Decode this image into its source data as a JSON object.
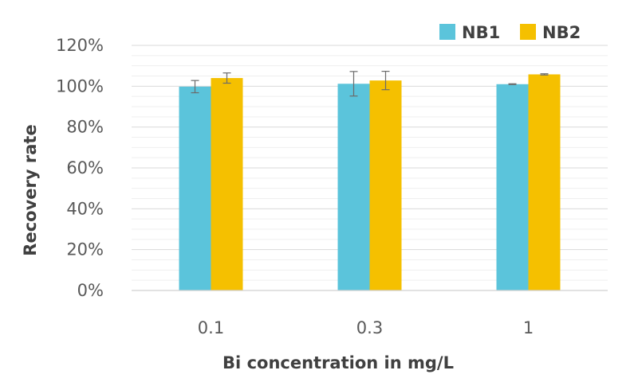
{
  "chart_data": {
    "type": "bar",
    "title": "",
    "xlabel": "Bi concentration in mg/L",
    "ylabel": "Recovery rate",
    "categories": [
      "0.1",
      "0.3",
      "1"
    ],
    "series": [
      {
        "name": "NB1",
        "color": "#5bc4db",
        "values": [
          99.8,
          101.2,
          101.0
        ],
        "errors": [
          3.0,
          6.0,
          0.2
        ]
      },
      {
        "name": "NB2",
        "color": "#f5c000",
        "values": [
          104.0,
          102.8,
          105.8
        ],
        "errors": [
          2.5,
          4.5,
          0.3
        ]
      }
    ],
    "ylim": [
      0,
      120
    ],
    "yticks": [
      0,
      20,
      40,
      60,
      80,
      100,
      120
    ],
    "ytick_labels": [
      "0%",
      "20%",
      "40%",
      "60%",
      "80%",
      "100%",
      "120%"
    ],
    "minor_step": 5,
    "grid": true,
    "legend_position": "top-right"
  }
}
